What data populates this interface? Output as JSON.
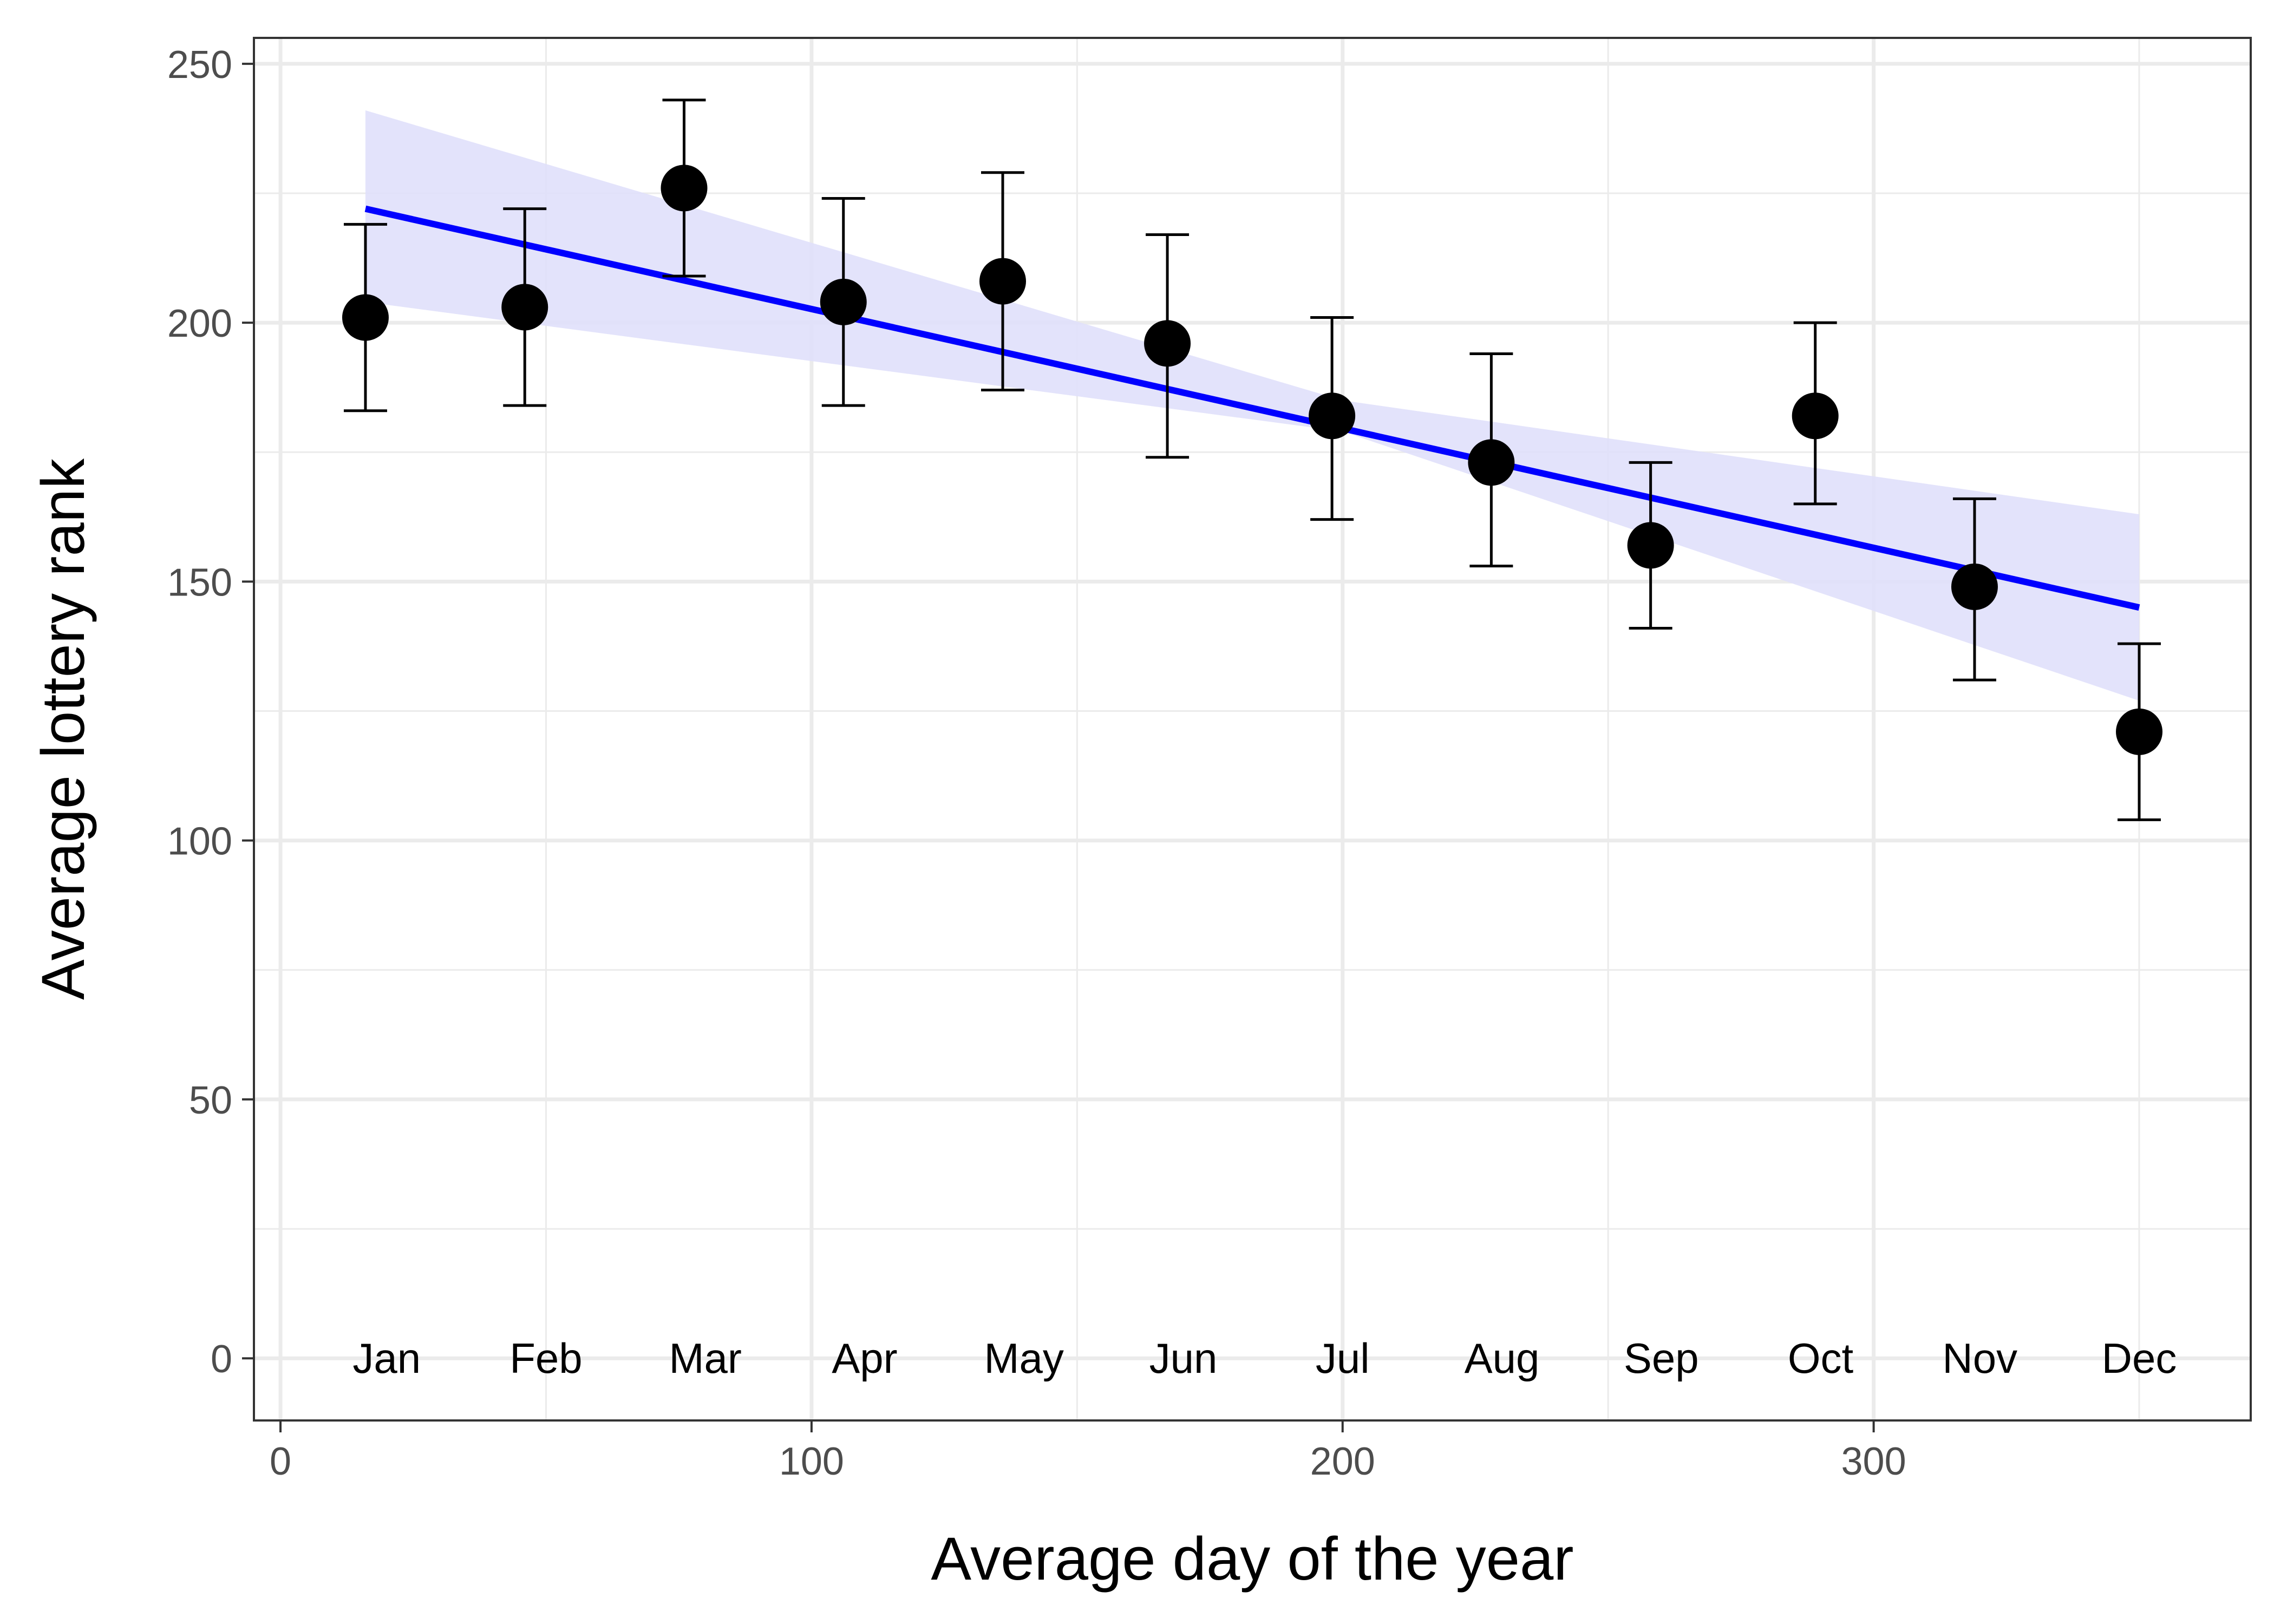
{
  "chart_data": {
    "type": "scatter",
    "title": "",
    "xlabel": "Average day of the year",
    "ylabel": "Average lottery rank",
    "xlim": [
      -5,
      371
    ],
    "ylim": [
      -12,
      255
    ],
    "x_ticks": [
      0,
      100,
      200,
      300
    ],
    "y_ticks": [
      0,
      50,
      100,
      150,
      200,
      250
    ],
    "x_minor_ticks": [
      50,
      150,
      250,
      350
    ],
    "y_minor_ticks": [
      25,
      75,
      125,
      175,
      225
    ],
    "grid": true,
    "legend": "none",
    "colors": {
      "points": "#000000",
      "fit_line": "#0000ff",
      "confidence_band": "#e0e0fb",
      "grid": "#ebebeb",
      "panel_border": "#333333"
    },
    "points": [
      {
        "label": "Jan",
        "x": 16,
        "y": 201,
        "ymin": 183,
        "ymax": 219
      },
      {
        "label": "Feb",
        "x": 46,
        "y": 203,
        "ymin": 184,
        "ymax": 222
      },
      {
        "label": "Mar",
        "x": 76,
        "y": 226,
        "ymin": 209,
        "ymax": 243
      },
      {
        "label": "Apr",
        "x": 106,
        "y": 204,
        "ymin": 184,
        "ymax": 224
      },
      {
        "label": "May",
        "x": 136,
        "y": 208,
        "ymin": 187,
        "ymax": 229
      },
      {
        "label": "Jun",
        "x": 167,
        "y": 196,
        "ymin": 174,
        "ymax": 217
      },
      {
        "label": "Jul",
        "x": 198,
        "y": 182,
        "ymin": 162,
        "ymax": 201
      },
      {
        "label": "Aug",
        "x": 228,
        "y": 173,
        "ymin": 153,
        "ymax": 194
      },
      {
        "label": "Sep",
        "x": 258,
        "y": 157,
        "ymin": 141,
        "ymax": 173
      },
      {
        "label": "Oct",
        "x": 289,
        "y": 182,
        "ymin": 165,
        "ymax": 200
      },
      {
        "label": "Nov",
        "x": 319,
        "y": 149,
        "ymin": 131,
        "ymax": 166
      },
      {
        "label": "Dec",
        "x": 350,
        "y": 121,
        "ymin": 104,
        "ymax": 138
      }
    ],
    "month_labels": {
      "labels": [
        "Jan",
        "Feb",
        "Mar",
        "Apr",
        "May",
        "Jun",
        "Jul",
        "Aug",
        "Sep",
        "Oct",
        "Nov",
        "Dec"
      ],
      "x": [
        20,
        50,
        80,
        110,
        140,
        170,
        200,
        230,
        260,
        290,
        320,
        350
      ],
      "y": 0
    },
    "fit_line": {
      "x": [
        16,
        350
      ],
      "y": [
        222,
        145
      ]
    },
    "confidence_band": {
      "x": [
        16,
        200,
        350
      ],
      "lower": [
        204,
        179,
        127
      ],
      "upper": [
        241,
        185,
        163
      ]
    }
  }
}
